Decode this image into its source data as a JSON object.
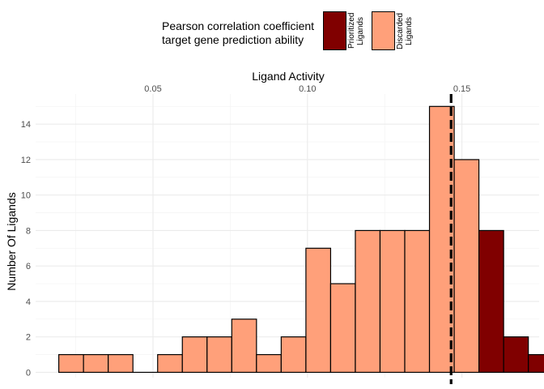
{
  "chart_data": {
    "type": "bar",
    "title": "",
    "xlabel": "Ligand Activity",
    "ylabel": "Number Of Ligands",
    "x_ticks": [
      0.05,
      0.1,
      0.15
    ],
    "x_tick_labels": [
      "0.05",
      "0.10",
      "0.15"
    ],
    "y_ticks": [
      0,
      2,
      4,
      6,
      8,
      10,
      12,
      14
    ],
    "xlim": [
      0.012,
      0.175
    ],
    "ylim": [
      -0.3,
      15.7
    ],
    "bin_width": 0.008,
    "threshold": 0.1465,
    "legend": {
      "title": [
        "Pearson correlation coefficient",
        "target gene prediction ability"
      ],
      "entries": [
        {
          "label": "Prioritized Ligands",
          "line1": "Prioritized",
          "line2": "Ligands",
          "color": "#800000"
        },
        {
          "label": "Discarded Ligands",
          "line1": "Discarded",
          "line2": "Ligands",
          "color": "#FFA07A"
        }
      ]
    },
    "bins": [
      {
        "x": 0.0235,
        "count": 1,
        "group": "Discarded"
      },
      {
        "x": 0.0315,
        "count": 1,
        "group": "Discarded"
      },
      {
        "x": 0.0395,
        "count": 1,
        "group": "Discarded"
      },
      {
        "x": 0.0475,
        "count": 0,
        "group": "Discarded"
      },
      {
        "x": 0.0555,
        "count": 1,
        "group": "Discarded"
      },
      {
        "x": 0.0635,
        "count": 2,
        "group": "Discarded"
      },
      {
        "x": 0.0715,
        "count": 2,
        "group": "Discarded"
      },
      {
        "x": 0.0795,
        "count": 3,
        "group": "Discarded"
      },
      {
        "x": 0.0875,
        "count": 1,
        "group": "Discarded"
      },
      {
        "x": 0.0955,
        "count": 2,
        "group": "Discarded"
      },
      {
        "x": 0.1035,
        "count": 7,
        "group": "Discarded"
      },
      {
        "x": 0.1115,
        "count": 5,
        "group": "Discarded"
      },
      {
        "x": 0.1195,
        "count": 8,
        "group": "Discarded"
      },
      {
        "x": 0.1275,
        "count": 8,
        "group": "Discarded"
      },
      {
        "x": 0.1355,
        "count": 8,
        "group": "Discarded"
      },
      {
        "x": 0.1435,
        "count": 15,
        "group": "Discarded"
      },
      {
        "x": 0.1515,
        "count": 12,
        "group": "Discarded"
      },
      {
        "x": 0.1595,
        "count": 8,
        "group": "Prioritized"
      },
      {
        "x": 0.1675,
        "count": 2,
        "group": "Prioritized"
      },
      {
        "x": 0.1755,
        "count": 1,
        "group": "Prioritized"
      }
    ]
  }
}
